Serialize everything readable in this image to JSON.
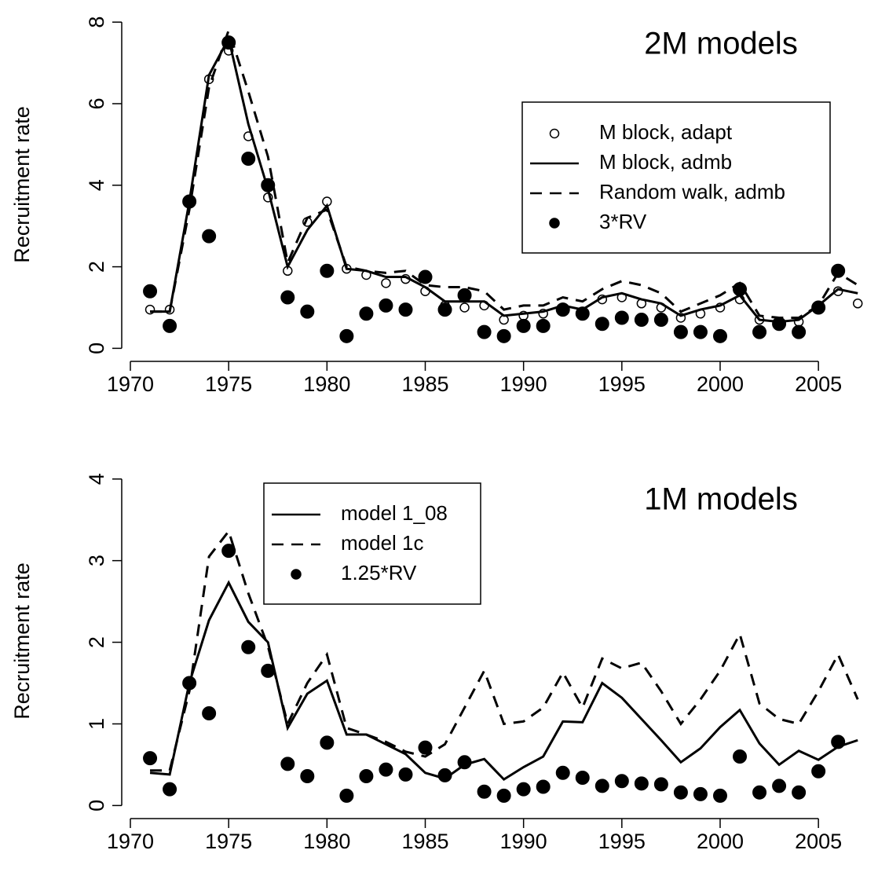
{
  "chart_data": [
    {
      "type": "line",
      "title": "2M models",
      "y_label": "Recruitment rate",
      "legend": "upper-right",
      "xlim": [
        1969.56,
        2008.03
      ],
      "ylim": [
        -0.32,
        8.35
      ],
      "xticks": [
        1970,
        1975,
        1980,
        1985,
        1990,
        1995,
        2000,
        2005
      ],
      "yticks": [
        0,
        2,
        4,
        6,
        8
      ],
      "x": [
        1971,
        1972,
        1973,
        1974,
        1975,
        1976,
        1977,
        1978,
        1979,
        1980,
        1981,
        1982,
        1983,
        1984,
        1985,
        1986,
        1987,
        1988,
        1989,
        1990,
        1991,
        1992,
        1993,
        1994,
        1995,
        1996,
        1997,
        1998,
        1999,
        2000,
        2001,
        2002,
        2003,
        2004,
        2005,
        2006,
        2007
      ],
      "series": [
        {
          "name": "M block, adapt",
          "color": "#000000",
          "style": "circle-open",
          "values": [
            0.95,
            0.95,
            3.6,
            6.6,
            7.3,
            5.2,
            3.7,
            1.9,
            3.1,
            3.6,
            1.95,
            1.8,
            1.6,
            1.7,
            1.4,
            1.05,
            1.0,
            1.05,
            0.7,
            0.8,
            0.85,
            1.0,
            0.9,
            1.2,
            1.25,
            1.1,
            1.0,
            0.75,
            0.85,
            1.0,
            1.2,
            0.7,
            0.65,
            0.65,
            1.0,
            1.4,
            1.1
          ]
        },
        {
          "name": "M block, admb",
          "color": "#000000",
          "style": "solid",
          "values": [
            0.9,
            0.9,
            3.6,
            6.7,
            7.6,
            5.5,
            3.9,
            2.0,
            2.9,
            3.5,
            1.95,
            1.9,
            1.75,
            1.75,
            1.5,
            1.15,
            1.15,
            1.15,
            0.8,
            0.85,
            0.9,
            1.05,
            0.95,
            1.25,
            1.35,
            1.2,
            1.1,
            0.8,
            0.95,
            1.05,
            1.3,
            0.7,
            0.65,
            0.7,
            1.05,
            1.45,
            1.35
          ]
        },
        {
          "name": "Random walk, admb",
          "color": "#000000",
          "style": "dashed",
          "values": [
            0.9,
            0.9,
            3.4,
            6.4,
            7.8,
            6.3,
            4.7,
            2.1,
            3.2,
            3.4,
            2.0,
            1.9,
            1.85,
            1.9,
            1.55,
            1.5,
            1.5,
            1.4,
            0.95,
            1.05,
            1.05,
            1.25,
            1.15,
            1.45,
            1.65,
            1.55,
            1.35,
            0.9,
            1.1,
            1.3,
            1.6,
            0.8,
            0.75,
            0.75,
            1.05,
            1.85,
            1.55
          ]
        },
        {
          "name": "3*RV",
          "color": "#000000",
          "style": "circle-filled",
          "values": [
            1.4,
            0.55,
            3.6,
            2.75,
            7.5,
            4.65,
            4.0,
            1.25,
            0.9,
            1.9,
            0.3,
            0.85,
            1.05,
            0.95,
            1.75,
            0.95,
            1.3,
            0.4,
            0.3,
            0.55,
            0.55,
            0.95,
            0.85,
            0.6,
            0.75,
            0.7,
            0.7,
            0.4,
            0.4,
            0.3,
            1.45,
            0.4,
            0.6,
            0.4,
            1.0,
            1.9,
            null
          ]
        }
      ]
    },
    {
      "type": "line",
      "title": "1M models",
      "y_label": "Recruitment rate",
      "legend": "upper-left",
      "xlim": [
        1969.56,
        2008.03
      ],
      "ylim": [
        -0.16,
        4.19
      ],
      "xticks": [
        1970,
        1975,
        1980,
        1985,
        1990,
        1995,
        2000,
        2005
      ],
      "yticks": [
        0,
        1,
        2,
        3,
        4
      ],
      "x": [
        1971,
        1972,
        1973,
        1974,
        1975,
        1976,
        1977,
        1978,
        1979,
        1980,
        1981,
        1982,
        1983,
        1984,
        1985,
        1986,
        1987,
        1988,
        1989,
        1990,
        1991,
        1992,
        1993,
        1994,
        1995,
        1996,
        1997,
        1998,
        1999,
        2000,
        2001,
        2002,
        2003,
        2004,
        2005,
        2006,
        2007
      ],
      "series": [
        {
          "name": "model 1_08",
          "color": "#000000",
          "style": "solid",
          "values": [
            0.4,
            0.38,
            1.5,
            2.27,
            2.73,
            2.25,
            2.0,
            0.95,
            1.37,
            1.53,
            0.87,
            0.87,
            0.75,
            0.63,
            0.4,
            0.33,
            0.5,
            0.57,
            0.32,
            0.47,
            0.6,
            1.03,
            1.02,
            1.5,
            1.32,
            1.06,
            0.8,
            0.53,
            0.7,
            0.96,
            1.17,
            0.76,
            0.5,
            0.67,
            0.56,
            0.72,
            0.8
          ]
        },
        {
          "name": "model 1c",
          "color": "#000000",
          "style": "dashed",
          "values": [
            0.43,
            0.43,
            1.4,
            3.05,
            3.36,
            2.6,
            1.95,
            1.0,
            1.5,
            1.85,
            0.95,
            0.87,
            0.78,
            0.66,
            0.6,
            0.75,
            1.2,
            1.65,
            1.0,
            1.03,
            1.2,
            1.63,
            1.2,
            1.8,
            1.68,
            1.75,
            1.4,
            1.0,
            1.3,
            1.65,
            2.1,
            1.25,
            1.06,
            1.0,
            1.4,
            1.85,
            1.3
          ]
        },
        {
          "name": "1.25*RV",
          "color": "#000000",
          "style": "circle-filled",
          "values": [
            0.58,
            0.2,
            1.5,
            1.13,
            3.12,
            1.94,
            1.65,
            0.51,
            0.36,
            0.77,
            0.12,
            0.36,
            0.44,
            0.38,
            0.71,
            0.37,
            0.53,
            0.17,
            0.12,
            0.2,
            0.23,
            0.4,
            0.34,
            0.24,
            0.3,
            0.27,
            0.26,
            0.16,
            0.14,
            0.12,
            0.6,
            0.16,
            0.24,
            0.16,
            0.42,
            0.78,
            null
          ]
        }
      ]
    }
  ]
}
